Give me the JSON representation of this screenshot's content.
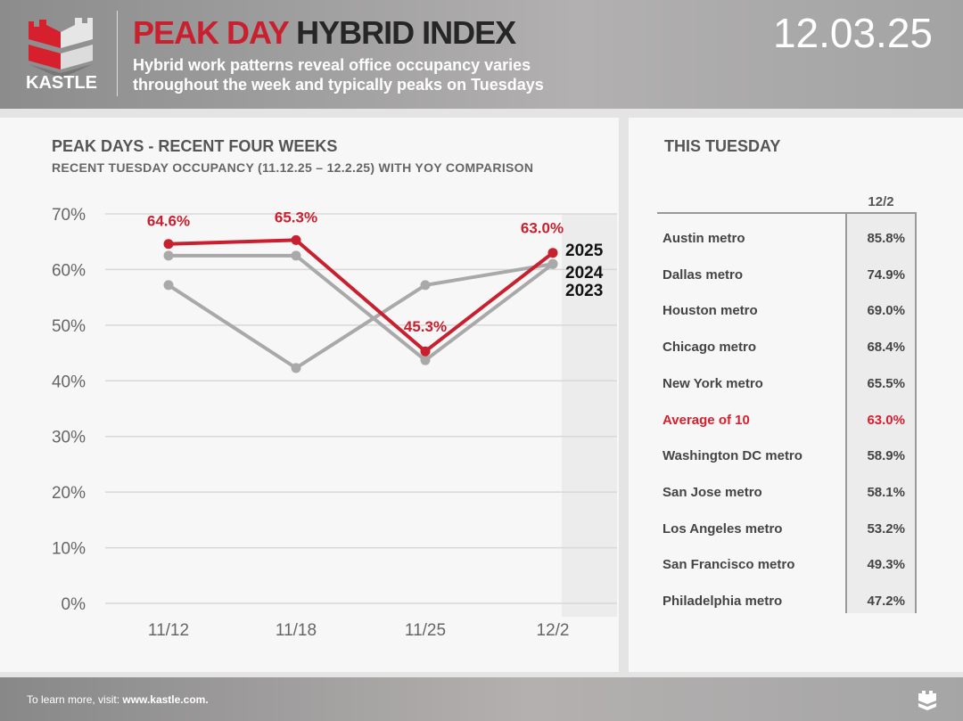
{
  "header": {
    "logo_text": "KASTLE",
    "title_red": "PEAK DAY",
    "title_dark": "HYBRID INDEX",
    "subtitle_line1": "Hybrid work patterns reveal office occupancy varies",
    "subtitle_line2": "throughout the week and typically peaks on Tuesdays",
    "date": "12.03.25"
  },
  "colors": {
    "brand_red": "#c8202f",
    "gray_series": "#a9a9a9"
  },
  "left_panel": {
    "title": "PEAK DAYS - RECENT FOUR WEEKS",
    "subtitle": "RECENT TUESDAY OCCUPANCY (11.12.25 – 12.2.25) WITH YOY COMPARISON"
  },
  "chart_data": {
    "type": "line",
    "categories": [
      "11/12",
      "11/18",
      "11/25",
      "12/2"
    ],
    "ylim": [
      0,
      70
    ],
    "yticks": [
      "0%",
      "10%",
      "20%",
      "30%",
      "40%",
      "50%",
      "60%",
      "70%"
    ],
    "grid": true,
    "highlighted_category": "12/2",
    "series": [
      {
        "name": "2025",
        "color": "#c8202f",
        "values": [
          64.6,
          65.3,
          45.3,
          63.0
        ],
        "labels": [
          "64.6%",
          "65.3%",
          "45.3%",
          "63.0%"
        ]
      },
      {
        "name": "2024",
        "color": "#a9a9a9",
        "values": [
          62.5,
          62.5,
          43.7,
          61.0
        ]
      },
      {
        "name": "2023",
        "color": "#a9a9a9",
        "values": [
          57.2,
          42.3,
          57.2,
          61.0
        ]
      }
    ]
  },
  "right_panel": {
    "title": "THIS TUESDAY",
    "column_header": "12/2",
    "rows": [
      {
        "label": "Austin metro",
        "value": "85.8%"
      },
      {
        "label": "Dallas metro",
        "value": "74.9%"
      },
      {
        "label": "Houston metro",
        "value": "69.0%"
      },
      {
        "label": "Chicago metro",
        "value": "68.4%"
      },
      {
        "label": "New York metro",
        "value": "65.5%"
      },
      {
        "label": "Average of 10",
        "value": "63.0%",
        "highlight": true
      },
      {
        "label": "Washington DC metro",
        "value": "58.9%"
      },
      {
        "label": "San Jose metro",
        "value": "58.1%"
      },
      {
        "label": "Los Angeles metro",
        "value": "53.2%"
      },
      {
        "label": "San Francisco metro",
        "value": "49.3%"
      },
      {
        "label": "Philadelphia metro",
        "value": "47.2%"
      }
    ]
  },
  "footer": {
    "text": "To learn more, visit:",
    "link": "www.kastle.com."
  }
}
